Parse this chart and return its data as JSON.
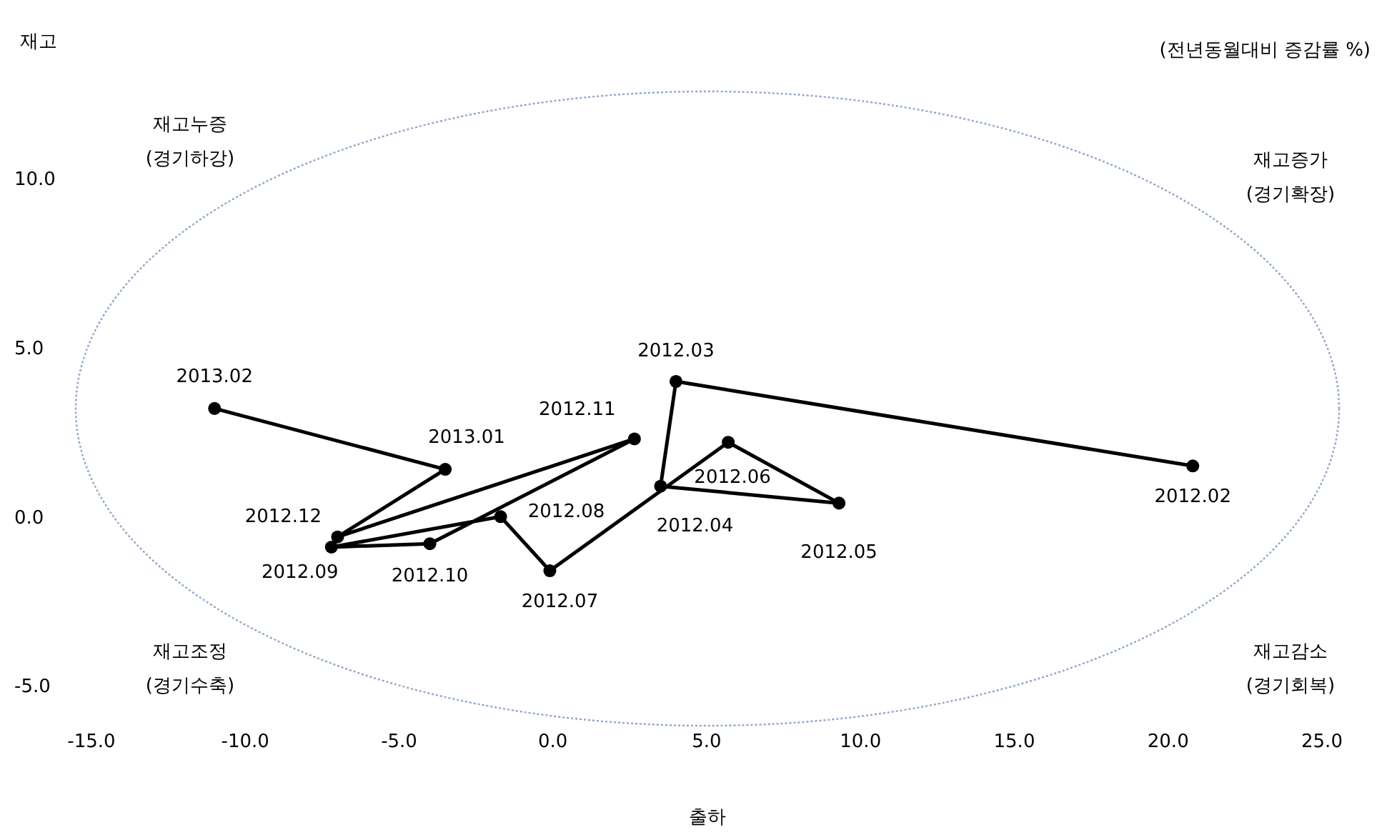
{
  "chart_data": {
    "type": "line",
    "subtitle": "(전년동월대비 증감률 %)",
    "xlabel": "출하",
    "series": [
      {
        "color": "#000000",
        "x": [
          20.8,
          4.0,
          3.5,
          9.3,
          5.7,
          -0.1,
          -1.7,
          -7.2,
          -4.0,
          2.65,
          -7.0,
          -3.5,
          -11.0
        ],
        "values": [
          1.5,
          4.0,
          0.9,
          0.4,
          2.2,
          -1.6,
          0.0,
          -0.9,
          -0.8,
          2.3,
          -0.6,
          1.4,
          3.2
        ]
      }
    ],
    "marker": "circle",
    "line_style": "solid",
    "xlim": [
      -15,
      25
    ],
    "xticks": [
      {
        "value": -15,
        "label": "-15.0"
      },
      {
        "value": -10,
        "label": "-10.0"
      },
      {
        "value": -5,
        "label": "-5.0"
      },
      {
        "value": 0,
        "label": "0.0"
      },
      {
        "value": 5,
        "label": "5.0"
      },
      {
        "value": 10,
        "label": "10.0"
      },
      {
        "value": 15,
        "label": "15.0"
      },
      {
        "value": 20,
        "label": "20.0"
      },
      {
        "value": 25,
        "label": "25.0"
      }
    ],
    "ylim": [
      -5,
      10
    ],
    "yticks": [
      {
        "value": -5,
        "label": "-5.0"
      },
      {
        "value": 0,
        "label": "0.0"
      },
      {
        "value": 5,
        "label": "5.0"
      },
      {
        "value": 10,
        "label": "10.0"
      }
    ],
    "grid": false,
    "legend": false,
    "annotations": [
      {
        "text": "2012.02",
        "x": 20.8,
        "y": 1.5
      },
      {
        "text": "2012.03",
        "x": 4.0,
        "y": 4.0
      },
      {
        "text": "2012.04",
        "x": 3.5,
        "y": 0.9
      },
      {
        "text": "2012.05",
        "x": 9.3,
        "y": 0.4
      },
      {
        "text": "2012.06",
        "x": 5.7,
        "y": 2.2
      },
      {
        "text": "2012.07",
        "x": -0.1,
        "y": -1.6
      },
      {
        "text": "2012.08",
        "x": -1.7,
        "y": 0.0
      },
      {
        "text": "2012.09",
        "x": -7.2,
        "y": -0.9
      },
      {
        "text": "2012.10",
        "x": -4.0,
        "y": -0.8
      },
      {
        "text": "2012.11",
        "x": 2.65,
        "y": 2.3
      },
      {
        "text": "2012.12",
        "x": -7.0,
        "y": -0.6
      },
      {
        "text": "2013.01",
        "x": -3.5,
        "y": 1.4
      },
      {
        "text": "2013.02",
        "x": -11.0,
        "y": 3.2
      },
      "재고누증\n(경기하강)",
      "재고증가\n(경기확장)",
      "재고조정\n(경기수축)",
      "재고감소\n(경기회복)",
      "재고"
    ]
  }
}
